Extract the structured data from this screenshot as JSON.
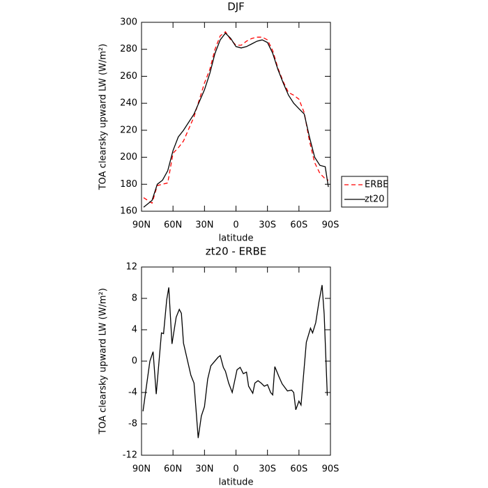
{
  "chart_data": [
    {
      "type": "line",
      "title": "DJF",
      "xlabel": "latitude",
      "ylabel": "TOA clearsky upward LW (W/m²)",
      "x": [
        88,
        80,
        75,
        70,
        65,
        60,
        55,
        50,
        40,
        30,
        25,
        20,
        15,
        10,
        5,
        0,
        -5,
        -10,
        -15,
        -20,
        -25,
        -30,
        -35,
        -40,
        -45,
        -50,
        -55,
        -60,
        -65,
        -70,
        -75,
        -80,
        -85,
        -88
      ],
      "series": [
        {
          "name": "ERBE",
          "color": "#ff0000",
          "linestyle": "dashed",
          "values": [
            170,
            166,
            179,
            180,
            181,
            203,
            207,
            212,
            230,
            255,
            265,
            280,
            290,
            293,
            287,
            283,
            283,
            286,
            288,
            289,
            289,
            287,
            279,
            266,
            256,
            248,
            246,
            243,
            233,
            212,
            196,
            188,
            184,
            183
          ]
        },
        {
          "name": "zt20",
          "color": "#000000",
          "linestyle": "solid",
          "values": [
            163,
            168,
            180,
            183,
            190,
            205,
            215,
            220,
            232,
            250,
            262,
            277,
            287,
            292,
            288,
            282,
            281,
            282,
            284,
            286,
            287,
            285,
            277,
            265,
            255,
            246,
            240,
            236,
            232,
            215,
            200,
            194,
            193,
            178
          ]
        }
      ],
      "xlim": [
        90,
        -90
      ],
      "xticks": [
        {
          "value": 90,
          "label": "90N"
        },
        {
          "value": 60,
          "label": "60N"
        },
        {
          "value": 30,
          "label": "30N"
        },
        0,
        {
          "value": -30,
          "label": "30S"
        },
        {
          "value": -60,
          "label": "60S"
        },
        {
          "value": -90,
          "label": "90S"
        }
      ],
      "ylim": [
        160,
        300
      ],
      "yticks": [
        160,
        180,
        200,
        220,
        240,
        260,
        280,
        300
      ],
      "legend": "right"
    },
    {
      "type": "line",
      "title": "zt20 - ERBE",
      "xlabel": "latitude",
      "ylabel": "TOA clearsky upward LW (W/m²)",
      "x": [
        88.6,
        82,
        79,
        76,
        71,
        69,
        66,
        64,
        61,
        57,
        54,
        52,
        50,
        43,
        40,
        36,
        33,
        30,
        27,
        24,
        17,
        15,
        12,
        10,
        7,
        3.6,
        -1,
        -4,
        -7,
        -10,
        -12,
        -16,
        -18,
        -21,
        -24,
        -27,
        -30,
        -33,
        -35,
        -37,
        -41,
        -44,
        -49,
        -53,
        -55,
        -57,
        -60,
        -62,
        -67,
        -71,
        -73,
        -76,
        -79,
        -82,
        -84,
        -87
      ],
      "series": [
        {
          "color": "#000000",
          "linestyle": "solid",
          "values": [
            -6.4,
            0,
            1.2,
            -4.2,
            3.6,
            3.5,
            7.8,
            9.4,
            2.2,
            5.6,
            6.6,
            6.1,
            2.3,
            -1.8,
            -2.8,
            -9.8,
            -7,
            -5.8,
            -2.3,
            -0.6,
            0.5,
            0.7,
            -0.8,
            -1.3,
            -2.8,
            -4,
            -1.1,
            -0.8,
            -1.6,
            -1.4,
            -3.2,
            -4.1,
            -2.8,
            -2.5,
            -2.8,
            -3.2,
            -3,
            -4,
            -4.3,
            -0.7,
            -2,
            -2.9,
            -3.8,
            -3.7,
            -4,
            -6.2,
            -5.1,
            -5.6,
            2.4,
            4.2,
            3.6,
            4.9,
            7.5,
            9.7,
            6,
            -4.4
          ]
        }
      ],
      "xlim": [
        90,
        -90
      ],
      "xticks": [
        {
          "value": 90,
          "label": "90N"
        },
        {
          "value": 60,
          "label": "60N"
        },
        {
          "value": 30,
          "label": "30N"
        },
        0,
        {
          "value": -30,
          "label": "30S"
        },
        {
          "value": -60,
          "label": "60S"
        },
        {
          "value": -90,
          "label": "90S"
        }
      ],
      "ylim": [
        -12,
        12
      ],
      "yticks": [
        -12,
        -8,
        -4,
        0,
        4,
        8,
        12
      ]
    }
  ]
}
